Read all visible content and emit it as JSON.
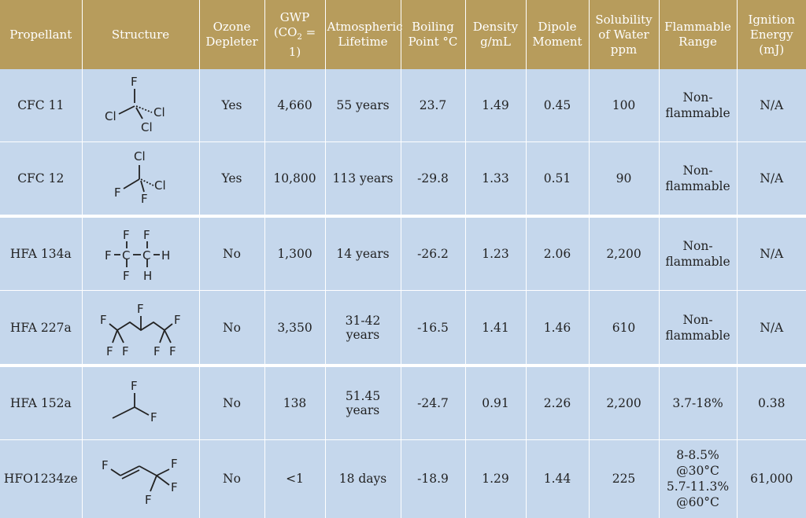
{
  "headers": {
    "propellant": "Propellant",
    "structure": "Structure",
    "ozone": [
      "Ozone",
      "Depleter"
    ],
    "gwp": {
      "pre": "GWP",
      "open": "(CO",
      "sub": "2",
      "rest": " = 1)"
    },
    "lifetime": [
      "Atmospheric",
      "Lifetime"
    ],
    "boiling": [
      "Boiling",
      "Point °C"
    ],
    "density": [
      "Density",
      "g/mL"
    ],
    "dipole": [
      "Dipole",
      "Moment"
    ],
    "solubility": [
      "Solubility",
      "of Water",
      "ppm"
    ],
    "flammable": [
      "Flammable",
      "Range"
    ],
    "ignition": [
      "Ignition",
      "Energy",
      "(mJ)"
    ]
  },
  "rows": [
    {
      "propellant": "CFC 11",
      "structure_atoms": {
        "top": "F",
        "left": "Cl",
        "right": "Cl",
        "bottom": "Cl"
      },
      "ozone": "Yes",
      "gwp": "4,660",
      "lifetime": "55 years",
      "boiling": "23.7",
      "density": "1.49",
      "dipole": "0.45",
      "solubility": "100",
      "flammable": [
        "Non-",
        "flammable"
      ],
      "ignition": "N/A"
    },
    {
      "propellant": "CFC 12",
      "structure_atoms": {
        "top": "Cl",
        "left": "F",
        "right": "Cl",
        "bottom": "F"
      },
      "ozone": "Yes",
      "gwp": "10,800",
      "lifetime": "113 years",
      "boiling": "-29.8",
      "density": "1.33",
      "dipole": "0.51",
      "solubility": "90",
      "flammable": [
        "Non-",
        "flammable"
      ],
      "ignition": "N/A"
    },
    {
      "propellant": "HFA 134a",
      "structure_atoms": {
        "c1_top": "F",
        "c2_top": "F",
        "left": "F",
        "c1": "C",
        "c2": "C",
        "right": "H",
        "c1_bottom": "F",
        "c2_bottom": "H"
      },
      "ozone": "No",
      "gwp": "1,300",
      "lifetime": "14 years",
      "boiling": "-26.2",
      "density": "1.23",
      "dipole": "2.06",
      "solubility": "2,200",
      "flammable": [
        "Non-",
        "flammable"
      ],
      "ignition": "N/A"
    },
    {
      "propellant": "HFA 227a",
      "structure_atoms": {
        "top": "F",
        "left_up": "F",
        "left_down1": "F",
        "left_down2": "F",
        "right_up": "F",
        "right_down1": "F",
        "right_down2": "F"
      },
      "ozone": "No",
      "gwp": "3,350",
      "lifetime": "31-42 years",
      "boiling": "-16.5",
      "density": "1.41",
      "dipole": "1.46",
      "solubility": "610",
      "flammable": [
        "Non-",
        "flammable"
      ],
      "ignition": "N/A"
    },
    {
      "propellant": "HFA 152a",
      "structure_atoms": {
        "top": "F",
        "right": "F"
      },
      "ozone": "No",
      "gwp": "138",
      "lifetime": "51.45 years",
      "boiling": "-24.7",
      "density": "0.91",
      "dipole": "2.26",
      "solubility": "2,200",
      "flammable": [
        "3.7-18%"
      ],
      "ignition": "0.38"
    },
    {
      "propellant": "HFO1234ze",
      "structure_atoms": {
        "left": "F",
        "top": "F",
        "right": "F",
        "bottom": "F"
      },
      "ozone": "No",
      "gwp": "<1",
      "lifetime": "18 days",
      "boiling": "-18.9",
      "density": "1.29",
      "dipole": "1.44",
      "solubility": "225",
      "flammable": [
        "8-8.5%",
        "@30°C",
        "5.7-11.3%",
        "@60°C"
      ],
      "ignition": "61,000"
    }
  ],
  "colors": {
    "header_bg": "#b79c5c",
    "cell_bg": "#c5d7ec",
    "grid": "#ffffff"
  }
}
